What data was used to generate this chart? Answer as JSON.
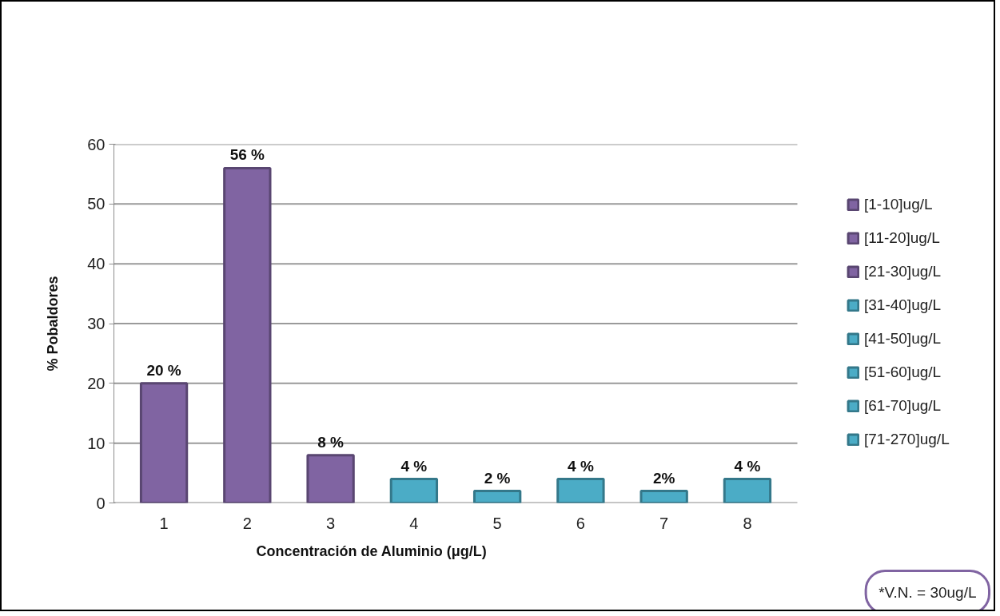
{
  "chart_data": {
    "type": "bar",
    "stacked": true,
    "ylabel": "% Pobaldores",
    "xlabel": "Concentración de Aluminio (μg/L)",
    "categories": [
      "1",
      "2",
      "3",
      "4",
      "5",
      "6",
      "7",
      "8"
    ],
    "series": [
      {
        "name": "[1-10]ug/L",
        "color": "#8064a2",
        "values": [
          20,
          null,
          null,
          null,
          null,
          null,
          null,
          null
        ],
        "value_labels": [
          "20 %",
          null,
          null,
          null,
          null,
          null,
          null,
          null
        ]
      },
      {
        "name": "[11-20]ug/L",
        "color": "#8064a2",
        "values": [
          null,
          56,
          null,
          null,
          null,
          null,
          null,
          null
        ],
        "value_labels": [
          null,
          "56 %",
          null,
          null,
          null,
          null,
          null,
          null
        ]
      },
      {
        "name": "[21-30]ug/L",
        "color": "#8064a2",
        "values": [
          null,
          null,
          8,
          null,
          null,
          null,
          null,
          null
        ],
        "value_labels": [
          null,
          null,
          "8 %",
          null,
          null,
          null,
          null,
          null
        ]
      },
      {
        "name": "[31-40]ug/L",
        "color": "#4bacc6",
        "values": [
          null,
          null,
          null,
          4,
          null,
          null,
          null,
          null
        ],
        "value_labels": [
          null,
          null,
          null,
          "4 %",
          null,
          null,
          null,
          null
        ]
      },
      {
        "name": "[41-50]ug/L",
        "color": "#4bacc6",
        "values": [
          null,
          null,
          null,
          null,
          2,
          null,
          null,
          null
        ],
        "value_labels": [
          null,
          null,
          null,
          null,
          "2 %",
          null,
          null,
          null
        ]
      },
      {
        "name": "[51-60]ug/L",
        "color": "#4bacc6",
        "values": [
          null,
          null,
          null,
          null,
          null,
          4,
          null,
          null
        ],
        "value_labels": [
          null,
          null,
          null,
          null,
          null,
          "4 %",
          null,
          null
        ]
      },
      {
        "name": "[61-70]ug/L",
        "color": "#4bacc6",
        "values": [
          null,
          null,
          null,
          null,
          null,
          null,
          2,
          null
        ],
        "value_labels": [
          null,
          null,
          null,
          null,
          null,
          null,
          "2%",
          null
        ]
      },
      {
        "name": "[71-270]ug/L",
        "color": "#4bacc6",
        "values": [
          null,
          null,
          null,
          null,
          null,
          null,
          null,
          4
        ],
        "value_labels": [
          null,
          null,
          null,
          null,
          null,
          null,
          null,
          "4 %"
        ]
      }
    ],
    "ylim": [
      0,
      60
    ],
    "yticks": [
      0,
      10,
      20,
      30,
      40,
      50,
      60
    ],
    "grid": "y",
    "legend": "right",
    "annotations": [
      "*V.N. = 30ug/L"
    ]
  }
}
